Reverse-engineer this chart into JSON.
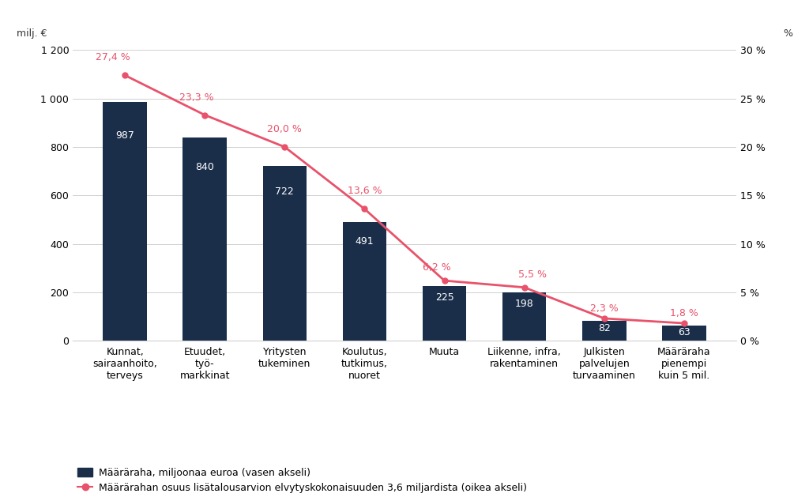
{
  "categories": [
    "Kunnat,\nsairaanhoito,\nterveys",
    "Etuudet,\ntyö-\nmarkkinat",
    "Yritysten\ntukeminen",
    "Koulutus,\ntutkimus,\nnuoret",
    "Muuta",
    "Liikenne, infra,\nrakentaminen",
    "Julkisten\npalvelujen\nturvaaminen",
    "Määräraha\npienempi\nkuin 5 mil."
  ],
  "bar_values": [
    987,
    840,
    722,
    491,
    225,
    198,
    82,
    63
  ],
  "line_values": [
    27.4,
    23.3,
    20.0,
    13.6,
    6.2,
    5.5,
    2.3,
    1.8
  ],
  "bar_color": "#1a2e4a",
  "line_color": "#e8526a",
  "bar_label_color": "#ffffff",
  "line_label_color": "#e8526a",
  "title_left": "milj. €",
  "title_right": "%",
  "ylim_left": [
    0,
    1200
  ],
  "ylim_right": [
    0,
    30
  ],
  "yticks_left": [
    0,
    200,
    400,
    600,
    800,
    1000,
    1200
  ],
  "yticks_right": [
    0,
    5,
    10,
    15,
    20,
    25,
    30
  ],
  "ytick_labels_right": [
    "0 %",
    "5 %",
    "10 %",
    "15 %",
    "20 %",
    "25 %",
    "30 %"
  ],
  "ytick_labels_left": [
    "0",
    "200",
    "400",
    "600",
    "800",
    "1 000",
    "1 200"
  ],
  "legend_bar": "Määräraha, miljoonaa euroa (vasen akseli)",
  "legend_line": "Määrärahan osuus lisätalousarvion elvytyskokonaisuuden 3,6 miljardista (oikea akseli)",
  "background_color": "#ffffff",
  "grid_color": "#d0d0d0",
  "bar_label_fontsize": 9,
  "line_label_fontsize": 9,
  "axis_label_fontsize": 9,
  "tick_label_fontsize": 9,
  "legend_fontsize": 9
}
